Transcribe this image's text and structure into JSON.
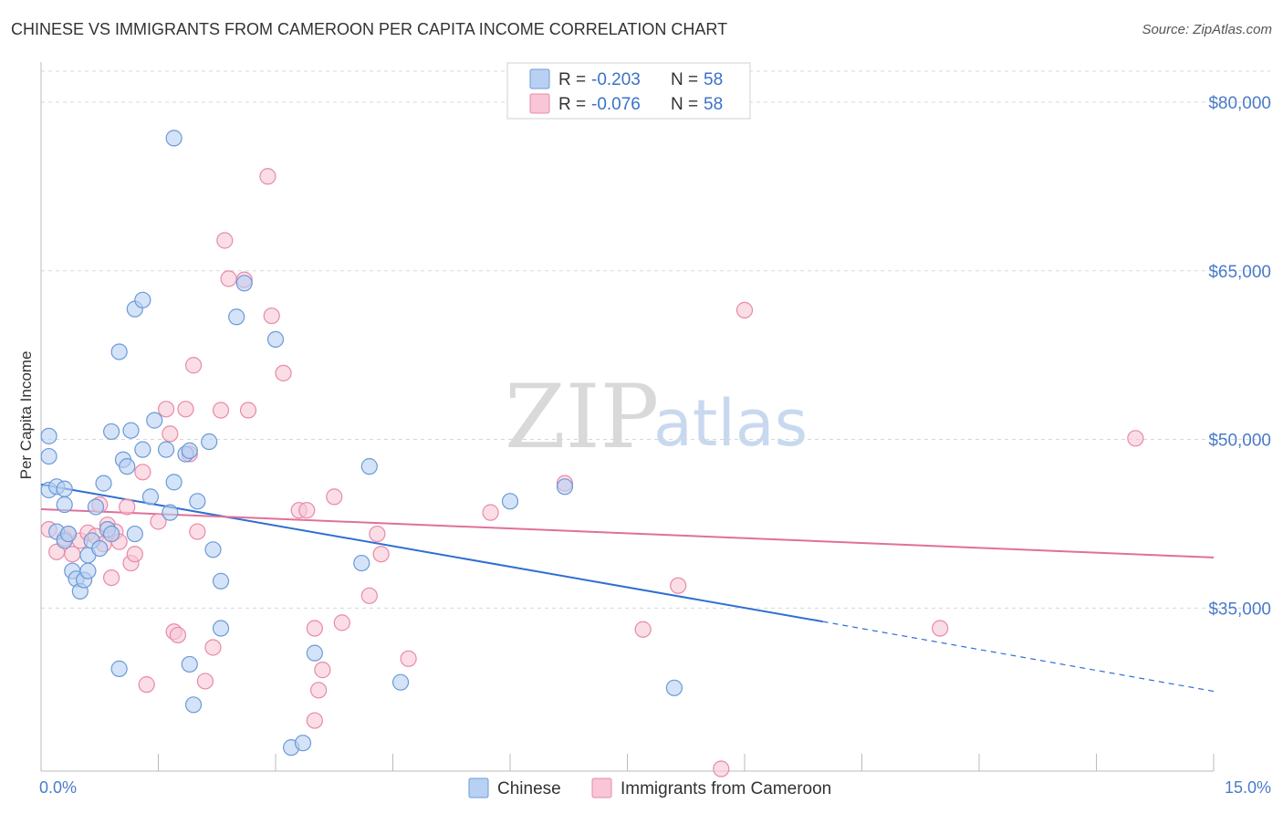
{
  "title": "CHINESE VS IMMIGRANTS FROM CAMEROON PER CAPITA INCOME CORRELATION CHART",
  "source": "Source: ZipAtlas.com",
  "watermark": {
    "zip": "ZIP",
    "atlas": "atlas"
  },
  "colors": {
    "chinese_fill": "#b8d1f2",
    "chinese_stroke": "#6b9ad8",
    "chinese_line": "#2f6fd0",
    "cameroon_fill": "#f8c6d6",
    "cameroon_stroke": "#e88aa8",
    "cameroon_line": "#e0709a",
    "grid": "#d8d8d8",
    "axis_text": "#4a7bc8"
  },
  "legend": {
    "rows": [
      {
        "r_label": "R = ",
        "r_value": "-0.203",
        "n_label": "N = ",
        "n_value": "58"
      },
      {
        "r_label": "R = ",
        "r_value": "-0.076",
        "n_label": "N = ",
        "n_value": "58"
      }
    ]
  },
  "chart_data": {
    "type": "scatter",
    "title": "CHINESE VS IMMIGRANTS FROM CAMEROON PER CAPITA INCOME CORRELATION CHART",
    "xlabel": "",
    "ylabel": "Per Capita Income",
    "xlim": [
      0,
      15
    ],
    "ylim": [
      20500,
      83000
    ],
    "x_tick_labels": [
      "0.0%",
      "15.0%"
    ],
    "y_ticks": [
      35000,
      50000,
      65000,
      80000
    ],
    "y_tick_labels": [
      "$35,000",
      "$50,000",
      "$65,000",
      "$80,000"
    ],
    "grid": true,
    "legend_position": "top-center",
    "series": [
      {
        "name": "Chinese",
        "r": -0.203,
        "n": 58,
        "trend": {
          "x0": 0,
          "y0": 46000,
          "x1": 10.0,
          "y1": 33800,
          "dashed_to_x": 15,
          "dashed_to_y": 27600
        },
        "points": [
          [
            0.1,
            45500
          ],
          [
            0.1,
            48500
          ],
          [
            0.1,
            50300
          ],
          [
            0.2,
            45800
          ],
          [
            0.2,
            41800
          ],
          [
            0.3,
            45600
          ],
          [
            0.3,
            41000
          ],
          [
            0.3,
            44200
          ],
          [
            0.35,
            41600
          ],
          [
            0.4,
            38300
          ],
          [
            0.45,
            37600
          ],
          [
            0.5,
            36500
          ],
          [
            0.55,
            37500
          ],
          [
            0.6,
            38300
          ],
          [
            0.6,
            39700
          ],
          [
            0.65,
            41000
          ],
          [
            0.7,
            44000
          ],
          [
            0.75,
            40300
          ],
          [
            0.8,
            46100
          ],
          [
            0.85,
            42000
          ],
          [
            0.9,
            41600
          ],
          [
            0.9,
            50700
          ],
          [
            1.0,
            29600
          ],
          [
            1.0,
            57800
          ],
          [
            1.05,
            48200
          ],
          [
            1.1,
            47600
          ],
          [
            1.15,
            50800
          ],
          [
            1.2,
            41600
          ],
          [
            1.2,
            61600
          ],
          [
            1.3,
            49100
          ],
          [
            1.3,
            62400
          ],
          [
            1.4,
            44900
          ],
          [
            1.45,
            51700
          ],
          [
            1.6,
            49100
          ],
          [
            1.65,
            43500
          ],
          [
            1.7,
            46200
          ],
          [
            1.7,
            76800
          ],
          [
            1.85,
            48700
          ],
          [
            1.9,
            49000
          ],
          [
            1.9,
            30000
          ],
          [
            1.95,
            26400
          ],
          [
            2.0,
            44500
          ],
          [
            2.15,
            49800
          ],
          [
            2.2,
            40200
          ],
          [
            2.3,
            37400
          ],
          [
            2.3,
            33200
          ],
          [
            2.5,
            60900
          ],
          [
            2.6,
            63900
          ],
          [
            3.0,
            58900
          ],
          [
            3.2,
            22600
          ],
          [
            3.35,
            23000
          ],
          [
            3.5,
            31000
          ],
          [
            4.1,
            39000
          ],
          [
            4.2,
            47600
          ],
          [
            4.6,
            28400
          ],
          [
            6.0,
            44500
          ],
          [
            6.7,
            45800
          ],
          [
            8.1,
            27900
          ]
        ]
      },
      {
        "name": "Immigrants from Cameroon",
        "r": -0.076,
        "n": 58,
        "trend": {
          "x0": 0,
          "y0": 43800,
          "x1": 15,
          "y1": 39500
        },
        "points": [
          [
            0.1,
            42000
          ],
          [
            0.2,
            40000
          ],
          [
            0.3,
            41200
          ],
          [
            0.35,
            41600
          ],
          [
            0.4,
            39800
          ],
          [
            0.5,
            41000
          ],
          [
            0.6,
            41700
          ],
          [
            0.7,
            41400
          ],
          [
            0.75,
            44200
          ],
          [
            0.8,
            40700
          ],
          [
            0.85,
            42400
          ],
          [
            0.9,
            37700
          ],
          [
            0.95,
            41800
          ],
          [
            1.0,
            40900
          ],
          [
            1.1,
            44000
          ],
          [
            1.15,
            39000
          ],
          [
            1.2,
            39800
          ],
          [
            1.3,
            47100
          ],
          [
            1.35,
            28200
          ],
          [
            1.5,
            42700
          ],
          [
            1.6,
            52700
          ],
          [
            1.65,
            50500
          ],
          [
            1.7,
            32900
          ],
          [
            1.75,
            32600
          ],
          [
            1.85,
            52700
          ],
          [
            1.9,
            48700
          ],
          [
            1.95,
            56600
          ],
          [
            2.0,
            41800
          ],
          [
            2.1,
            28500
          ],
          [
            2.2,
            31500
          ],
          [
            2.3,
            52600
          ],
          [
            2.35,
            67700
          ],
          [
            2.4,
            64300
          ],
          [
            2.6,
            64200
          ],
          [
            2.65,
            52600
          ],
          [
            2.9,
            73400
          ],
          [
            2.95,
            61000
          ],
          [
            3.1,
            55900
          ],
          [
            3.3,
            43700
          ],
          [
            3.4,
            43700
          ],
          [
            3.5,
            25000
          ],
          [
            3.5,
            33200
          ],
          [
            3.55,
            27700
          ],
          [
            3.6,
            29500
          ],
          [
            3.75,
            44900
          ],
          [
            3.85,
            33700
          ],
          [
            4.2,
            36100
          ],
          [
            4.3,
            41600
          ],
          [
            4.35,
            39800
          ],
          [
            4.7,
            30500
          ],
          [
            5.75,
            43500
          ],
          [
            6.7,
            46100
          ],
          [
            7.7,
            33100
          ],
          [
            8.15,
            37000
          ],
          [
            8.7,
            20700
          ],
          [
            9.0,
            61500
          ],
          [
            11.5,
            33200
          ],
          [
            14.0,
            50100
          ]
        ]
      }
    ]
  },
  "bottom_legend": [
    "Chinese",
    "Immigrants from Cameroon"
  ]
}
